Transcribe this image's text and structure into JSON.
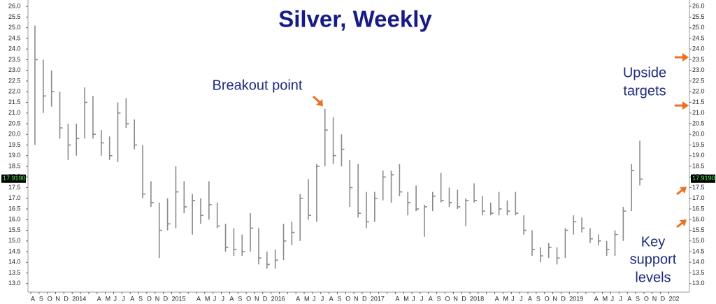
{
  "chart_data": {
    "type": "ohlc",
    "title": "Silver, Weekly",
    "categories": [
      "A",
      "S",
      "O",
      "N",
      "D",
      "2014",
      null,
      null,
      "A",
      "M",
      "J",
      "J",
      "A",
      "S",
      "O",
      "N",
      "D",
      "2015",
      null,
      null,
      "A",
      "M",
      "J",
      "J",
      "A",
      "S",
      "O",
      "N",
      "D",
      "2016",
      null,
      null,
      "A",
      "M",
      "J",
      "J",
      "A",
      "S",
      "O",
      "N",
      "D",
      "2017",
      null,
      null,
      "A",
      "M",
      "J",
      "J",
      "A",
      "S",
      "O",
      "N",
      "D",
      "2018",
      null,
      null,
      "A",
      "M",
      "J",
      "J",
      "A",
      "S",
      "O",
      "N",
      "D",
      "2019",
      null,
      null,
      "A",
      "M",
      "J",
      "J",
      "A",
      "S",
      "O",
      "N",
      "D",
      "202"
    ],
    "high": [
      25.1,
      23.5,
      23,
      22,
      20.5,
      20.5,
      22.2,
      21.8,
      20.2,
      19.9,
      21.5,
      21.7,
      20.7,
      19.5,
      17.8,
      16.8,
      17,
      18.5,
      17.8,
      17.2,
      17,
      17.8,
      16.8,
      15.8,
      15.6,
      15.3,
      16.3,
      15.6,
      14.5,
      14.6,
      15.8,
      15.9,
      17.2,
      17.9,
      18.6,
      21.2,
      20.8,
      20,
      18.8,
      18.6,
      17.3,
      17.3,
      18.3,
      18.3,
      18.6,
      17.3,
      17.6,
      16.7,
      17.3,
      18.2,
      17.5,
      17.4,
      17,
      17.7,
      17.1,
      16.8,
      17.3,
      16.9,
      17.3,
      16.2,
      15.5,
      14.7,
      14.9,
      14.7,
      15.6,
      16.2,
      16.1,
      15.6,
      15.3,
      15,
      15.5,
      16.6,
      18.6,
      19.7,
      null,
      null,
      null,
      null
    ],
    "low": [
      19.5,
      21,
      21.3,
      19.8,
      18.8,
      19,
      19.8,
      19.8,
      19,
      18.8,
      18.7,
      20.3,
      19.3,
      17,
      16.6,
      14.2,
      15.5,
      15.6,
      16.3,
      15.3,
      15.8,
      16,
      15.6,
      14.5,
      14.3,
      14.3,
      14.5,
      13.9,
      13.7,
      13.7,
      14.1,
      14.8,
      15,
      16,
      15.9,
      18.5,
      18.6,
      18.5,
      16.6,
      16.1,
      15.6,
      15.9,
      16.9,
      16.8,
      17.1,
      16.2,
      16.4,
      15.2,
      16.4,
      16.8,
      16.6,
      16.5,
      15.7,
      16.8,
      16.2,
      16.2,
      16.2,
      16.2,
      16.2,
      15.3,
      14.3,
      14,
      14.2,
      13.9,
      14.2,
      15.3,
      15.4,
      14.9,
      14.8,
      14.3,
      14.3,
      15,
      16.4,
      17.6,
      null,
      null,
      null,
      null
    ],
    "close": [
      23.5,
      21.8,
      22,
      20.3,
      19.5,
      19.8,
      21.5,
      20,
      19.6,
      19,
      21,
      20.5,
      19.5,
      17.2,
      16.8,
      15.5,
      15.8,
      17.3,
      16.6,
      16.9,
      16.2,
      16.7,
      15.7,
      14.7,
      14.6,
      14.5,
      15.6,
      14.2,
      13.9,
      14.1,
      15,
      15.4,
      17,
      16.2,
      18.5,
      20.2,
      19,
      19.3,
      17.5,
      16.3,
      15.9,
      17,
      18,
      18.1,
      17.3,
      16.8,
      16.5,
      16.6,
      17.1,
      16.9,
      16.8,
      16.6,
      16.9,
      16.9,
      16.4,
      16.3,
      16.5,
      16.4,
      16.3,
      15.5,
      14.6,
      14.3,
      14.7,
      14.2,
      15.5,
      15.9,
      15.6,
      15.1,
      15,
      14.6,
      15.3,
      16.4,
      18.3,
      17.9,
      null,
      null,
      null,
      null
    ],
    "color": "#8a8a8a",
    "ylim": [
      12.6,
      26.3
    ],
    "yticks": [
      {
        "value": 13,
        "label": "13.0"
      },
      {
        "value": 13.5,
        "label": "13.5"
      },
      {
        "value": 14,
        "label": "14.0"
      },
      {
        "value": 14.5,
        "label": "14.5"
      },
      {
        "value": 15,
        "label": "15.0"
      },
      {
        "value": 15.5,
        "label": "15.5"
      },
      {
        "value": 16,
        "label": "16.0"
      },
      {
        "value": 16.5,
        "label": "16.5"
      },
      {
        "value": 17,
        "label": "17.0"
      },
      {
        "value": 17.5,
        "label": "17.5"
      },
      {
        "value": 18,
        "label": "18.0"
      },
      {
        "value": 18.5,
        "label": "18.5"
      },
      {
        "value": 19,
        "label": "19.0"
      },
      {
        "value": 19.5,
        "label": "19.5"
      },
      {
        "value": 20,
        "label": "20.0"
      },
      {
        "value": 20.5,
        "label": "20.5"
      },
      {
        "value": 21,
        "label": "21.0"
      },
      {
        "value": 21.5,
        "label": "21.5"
      },
      {
        "value": 22,
        "label": "22.0"
      },
      {
        "value": 22.5,
        "label": "22.5"
      },
      {
        "value": 23,
        "label": "23.0"
      },
      {
        "value": 23.5,
        "label": "23.5"
      },
      {
        "value": 24,
        "label": "24.0"
      },
      {
        "value": 24.5,
        "label": "24.5"
      },
      {
        "value": 25,
        "label": "25.0"
      },
      {
        "value": 25.5,
        "label": "25.5"
      },
      {
        "value": 26,
        "label": "26.0"
      }
    ],
    "last_price": {
      "value": 17.919,
      "label": "17.9190"
    },
    "annotations": {
      "breakout": "Breakout point",
      "targets": [
        "Upside",
        "targets"
      ],
      "support": [
        "Key",
        "support",
        "levels"
      ]
    }
  }
}
